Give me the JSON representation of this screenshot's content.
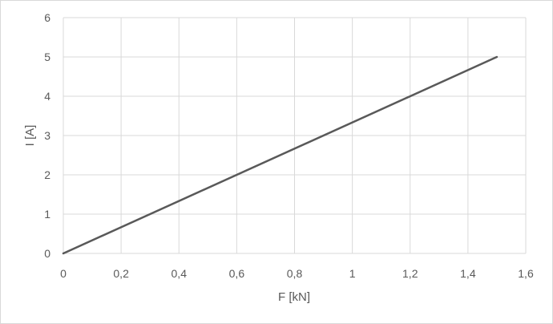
{
  "chart_data": {
    "type": "line",
    "title": "",
    "xlabel": "F [kN]",
    "ylabel": "I [A]",
    "xlim": [
      0,
      1.6
    ],
    "ylim": [
      0,
      6
    ],
    "x_ticks": [
      "0",
      "0,2",
      "0,4",
      "0,6",
      "0,8",
      "1",
      "1,2",
      "1,4",
      "1,6"
    ],
    "y_ticks": [
      "0",
      "1",
      "2",
      "3",
      "4",
      "5",
      "6"
    ],
    "grid": true,
    "series": [
      {
        "x": [
          0,
          1.5
        ],
        "y": [
          0,
          5
        ],
        "color": "#595959"
      }
    ]
  }
}
